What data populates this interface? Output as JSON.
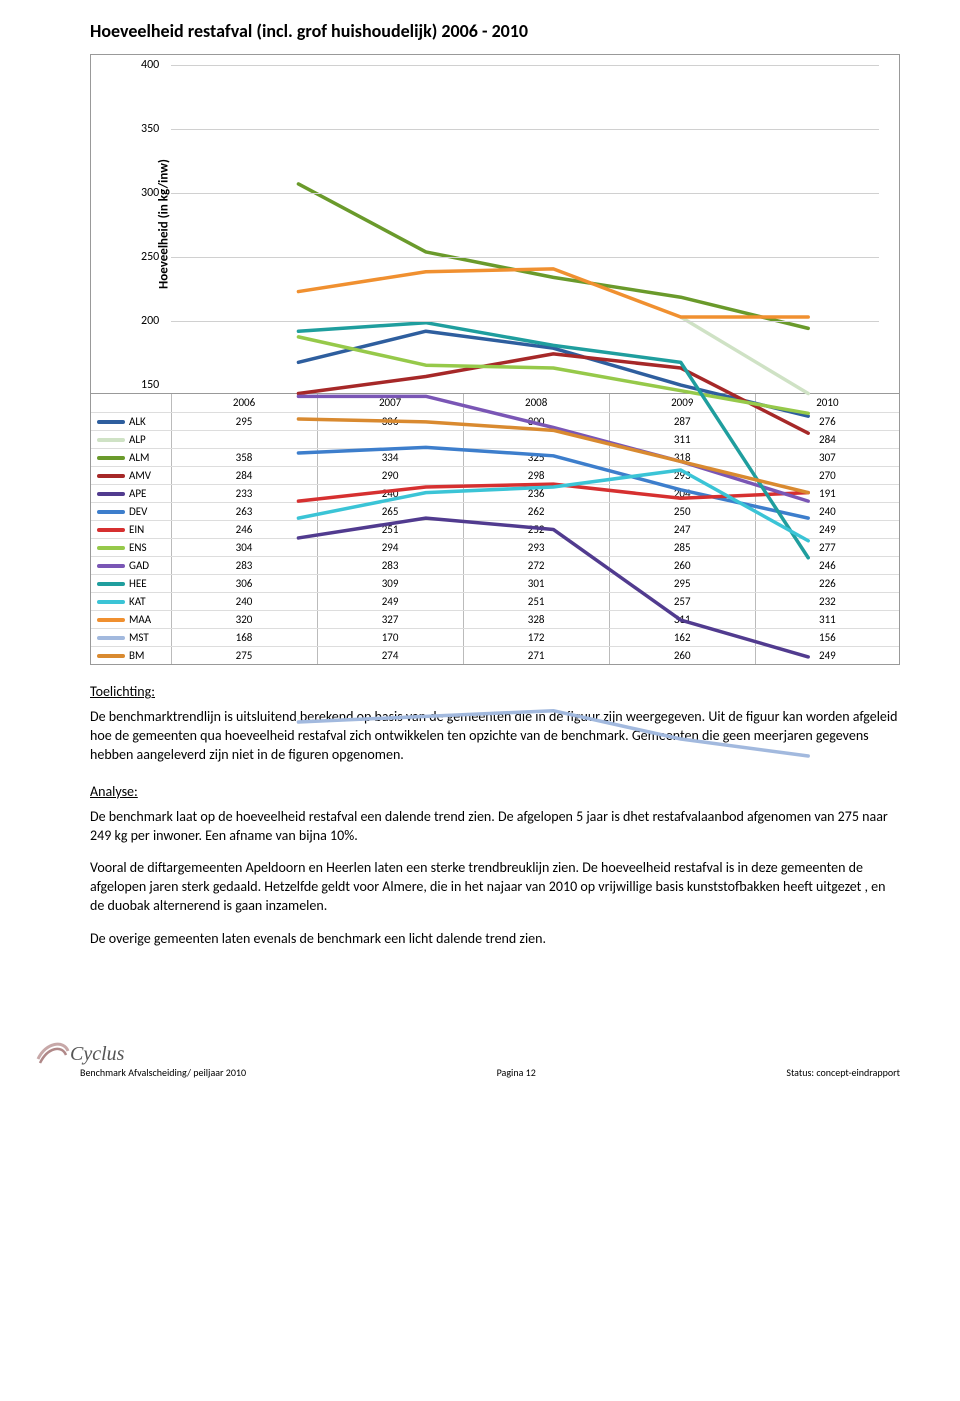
{
  "title": "Hoeveelheid restafval (incl. grof huishoudelijk) 2006 - 2010",
  "chart": {
    "ylabel": "Hoeveelheid (in kg/inw)",
    "ymin": 150,
    "ymax": 400,
    "ytick_step": 50,
    "years": [
      "2006",
      "2007",
      "2008",
      "2009",
      "2010"
    ],
    "yearcol_pct": [
      18,
      36,
      54,
      72,
      90
    ],
    "line_width": 3.5,
    "grid_color": "#d0d0d0",
    "background_color": "#ffffff",
    "series": [
      {
        "code": "ALK",
        "color": "#2e5e9e",
        "values": {
          "2006": 295,
          "2007": 306,
          "2008": 300,
          "2009": 287,
          "2010": 276
        }
      },
      {
        "code": "ALP",
        "color": "#cfe2c5",
        "values": {
          "2006": null,
          "2007": null,
          "2008": null,
          "2009": 311,
          "2010": 284
        }
      },
      {
        "code": "ALM",
        "color": "#6a9a2b",
        "values": {
          "2006": 358,
          "2007": 334,
          "2008": 325,
          "2009": 318,
          "2010": 307
        }
      },
      {
        "code": "AMV",
        "color": "#a62828",
        "values": {
          "2006": 284,
          "2007": 290,
          "2008": 298,
          "2009": 293,
          "2010": 270
        }
      },
      {
        "code": "APE",
        "color": "#513b8f",
        "values": {
          "2006": 233,
          "2007": 240,
          "2008": 236,
          "2009": 204,
          "2010": 191
        }
      },
      {
        "code": "DEV",
        "color": "#3d7ecc",
        "values": {
          "2006": 263,
          "2007": 265,
          "2008": 262,
          "2009": 250,
          "2010": 240
        }
      },
      {
        "code": "EIN",
        "color": "#d63030",
        "values": {
          "2006": 246,
          "2007": 251,
          "2008": 252,
          "2009": 247,
          "2010": 249
        }
      },
      {
        "code": "ENS",
        "color": "#96c94a",
        "values": {
          "2006": 304,
          "2007": 294,
          "2008": 293,
          "2009": 285,
          "2010": 277
        }
      },
      {
        "code": "GAD",
        "color": "#7a56b5",
        "values": {
          "2006": 283,
          "2007": 283,
          "2008": 272,
          "2009": 260,
          "2010": 246
        }
      },
      {
        "code": "HEE",
        "color": "#1f9e9e",
        "values": {
          "2006": 306,
          "2007": 309,
          "2008": 301,
          "2009": 295,
          "2010": 226
        }
      },
      {
        "code": "KAT",
        "color": "#3bc4d6",
        "values": {
          "2006": 240,
          "2007": 249,
          "2008": 251,
          "2009": 257,
          "2010": 232
        }
      },
      {
        "code": "MAA",
        "color": "#f09030",
        "values": {
          "2006": 320,
          "2007": 327,
          "2008": 328,
          "2009": 311,
          "2010": 311
        }
      },
      {
        "code": "MST",
        "color": "#a2b9de",
        "values": {
          "2006": 168,
          "2007": 170,
          "2008": 172,
          "2009": 162,
          "2010": 156
        }
      },
      {
        "code": "BM",
        "color": "#d98a30",
        "values": {
          "2006": 275,
          "2007": 274,
          "2008": 271,
          "2009": 260,
          "2010": 249
        }
      }
    ]
  },
  "text": {
    "toelichting_head": "Toelichting:",
    "toelichting_body": "De benchmarktrendlijn is uitsluitend berekend op basis van de gemeenten die in de figuur zijn weergegeven. Uit de figuur kan worden afgeleid hoe de gemeenten qua hoeveelheid restafval zich ontwikkelen ten opzichte van de benchmark. Gemeenten die geen meerjaren gegevens hebben aangeleverd zijn niet in de figuren opgenomen.",
    "analyse_head": "Analyse:",
    "analyse_p1": "De benchmark laat op de hoeveelheid restafval een dalende trend zien. De afgelopen 5 jaar is dhet restafvalaanbod afgenomen van 275 naar 249 kg per inwoner. Een afname van bijna 10%.",
    "analyse_p2": "Vooral de diftargemeenten Apeldoorn en Heerlen laten een sterke trendbreuklijn zien. De hoeveelheid restafval is in deze gemeenten de afgelopen jaren sterk gedaald. Hetzelfde geldt voor Almere, die in het najaar van 2010 op vrijwillige basis kunststofbakken heeft uitgezet , en de duobak alternerend is gaan inzamelen.",
    "analyse_p3": "De overige gemeenten laten evenals de benchmark een licht dalende trend zien."
  },
  "footer": {
    "logo": "Cyclus",
    "left": "Benchmark Afvalscheiding/ peiljaar 2010",
    "center": "Pagina 12",
    "right": "Status: concept-eindrapport"
  }
}
